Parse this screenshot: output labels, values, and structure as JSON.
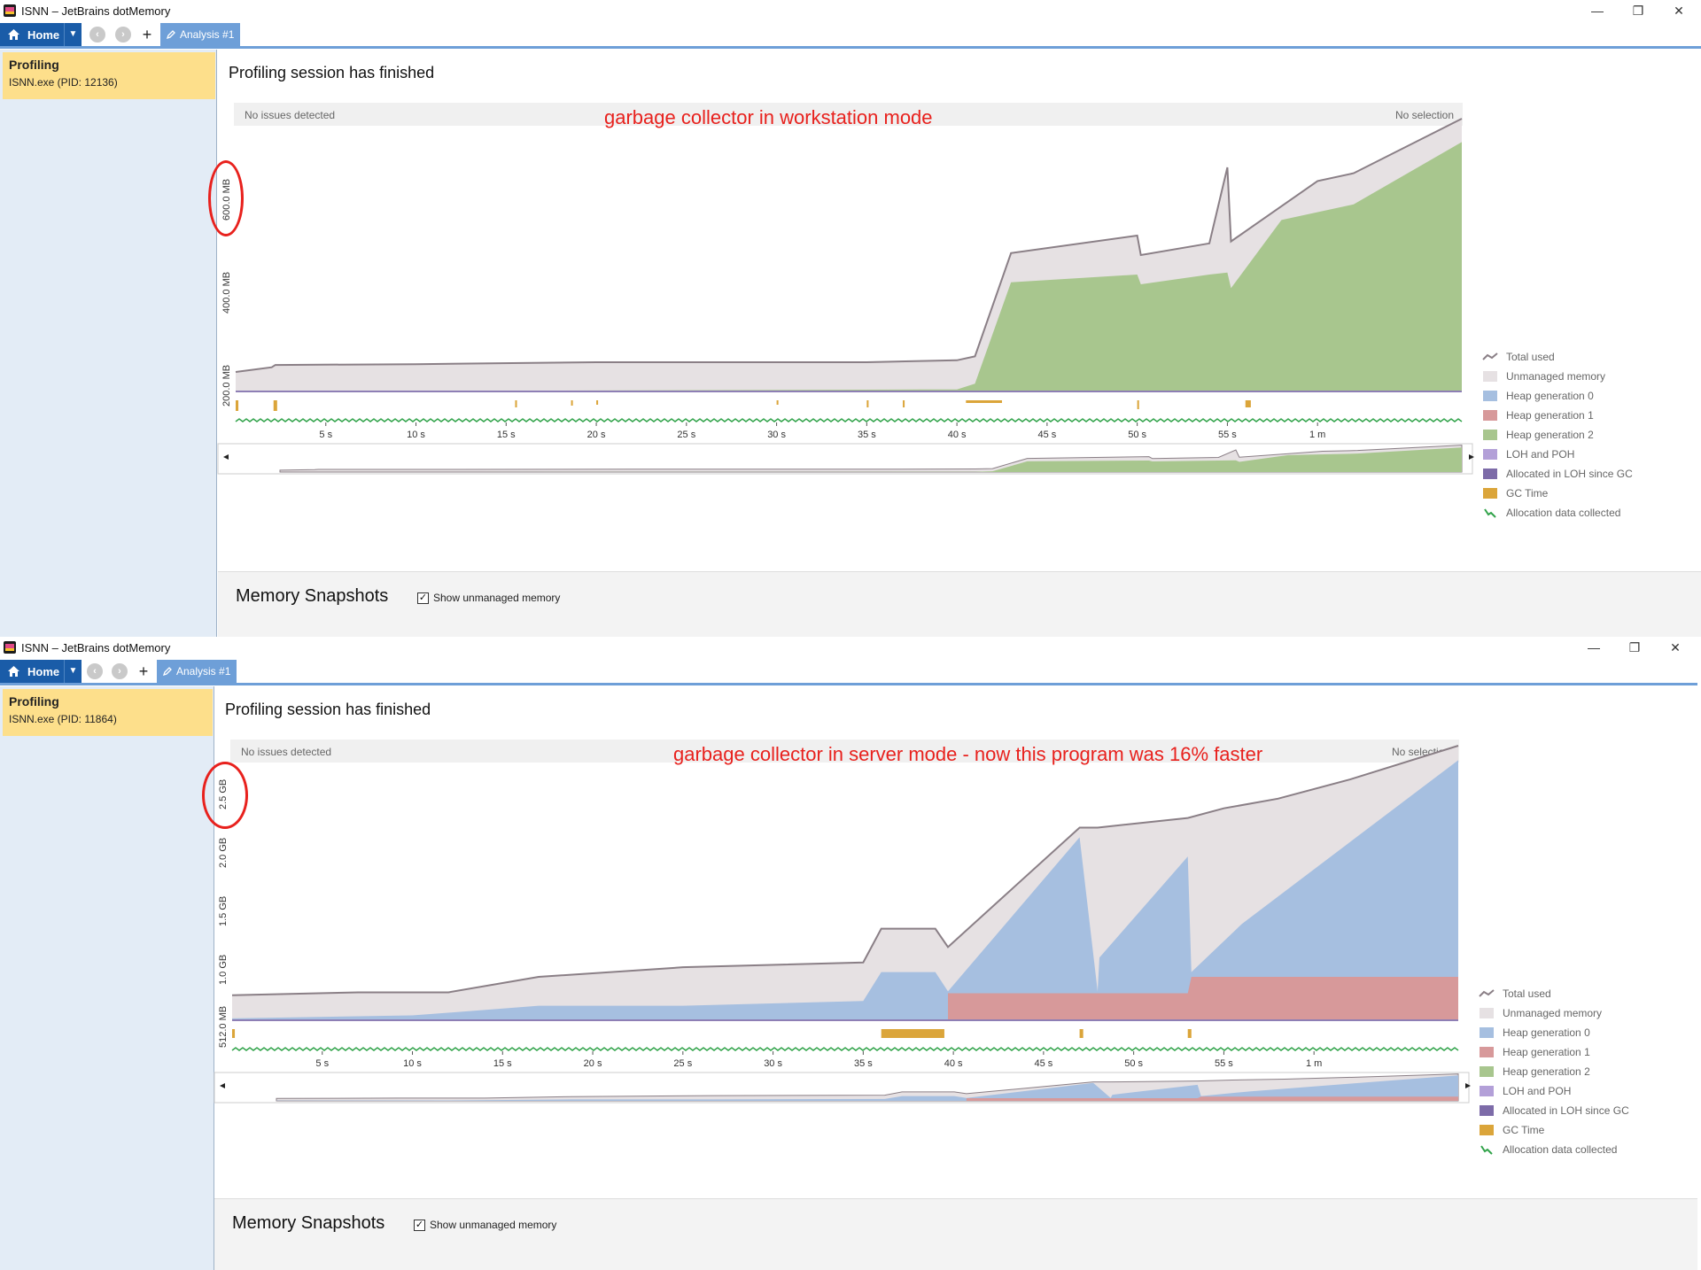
{
  "shots": [
    {
      "window_title": "ISNN – JetBrains dotMemory",
      "toolbar": {
        "home_label": "Home",
        "tab_label": "Analysis #1"
      },
      "sidebar": {
        "title": "Profiling",
        "process": "ISNN.exe (PID: 12136)"
      },
      "status": "Profiling session has finished",
      "infobar": {
        "left": "No issues detected",
        "right": "No selection"
      },
      "annotation": "garbage collector in workstation mode",
      "y_axis_labels": [
        "200.0 MB",
        "400.0 MB",
        "600.0 MB"
      ],
      "legend": [
        "Total used",
        "Unmanaged memory",
        "Heap generation 0",
        "Heap generation 1",
        "Heap generation 2",
        "LOH and POH",
        "Allocated in LOH since GC",
        "GC Time",
        "Allocation data collected"
      ],
      "snapshots": {
        "title": "Memory Snapshots",
        "checkbox_label": "Show unmanaged memory",
        "checked": true
      },
      "chart_data": {
        "type": "area",
        "x_unit": "s",
        "x_tick_labels": [
          "5 s",
          "10 s",
          "15 s",
          "20 s",
          "25 s",
          "30 s",
          "35 s",
          "40 s",
          "45 s",
          "50 s",
          "55 s",
          "1 m"
        ],
        "ylim_mb": [
          0,
          700
        ],
        "series": [
          {
            "name": "Total used",
            "x": [
              0,
              2,
              2.2,
              10,
              20,
              25,
              35,
              40,
              41,
              43,
              50,
              50.2,
              54,
              55,
              55.2,
              60,
              62,
              68
            ],
            "y": [
              50,
              62,
              68,
              70,
              75,
              75,
              75,
              80,
              90,
              355,
              400,
              350,
              380,
              575,
              385,
              540,
              560,
              700
            ]
          },
          {
            "name": "Heap generation 2",
            "x": [
              0,
              38,
              40,
              41,
              43,
              50,
              50.2,
              54,
              55,
              55.2,
              58,
              62,
              68
            ],
            "y": [
              0,
              5,
              5,
              20,
              280,
              300,
              275,
              300,
              305,
              265,
              440,
              480,
              640
            ]
          }
        ]
      }
    },
    {
      "window_title": "ISNN – JetBrains dotMemory",
      "toolbar": {
        "home_label": "Home",
        "tab_label": "Analysis #1"
      },
      "sidebar": {
        "title": "Profiling",
        "process": "ISNN.exe (PID: 11864)"
      },
      "status": "Profiling session has finished",
      "infobar": {
        "left": "No issues detected",
        "right": "No selection"
      },
      "annotation": "garbage collector in server mode  -  now this program was 16% faster",
      "y_axis_labels": [
        "512.0 MB",
        "1.0 GB",
        "1.5 GB",
        "2.0 GB",
        "2.5 GB"
      ],
      "legend": [
        "Total used",
        "Unmanaged memory",
        "Heap generation 0",
        "Heap generation 1",
        "Heap generation 2",
        "LOH and POH",
        "Allocated in LOH since GC",
        "GC Time",
        "Allocation data collected"
      ],
      "snapshots": {
        "title": "Memory Snapshots",
        "checkbox_label": "Show unmanaged memory",
        "checked": true
      },
      "chart_data": {
        "type": "area",
        "x_unit": "s",
        "x_tick_labels": [
          "5 s",
          "10 s",
          "15 s",
          "20 s",
          "25 s",
          "30 s",
          "35 s",
          "40 s",
          "45 s",
          "50 s",
          "55 s",
          "1 m"
        ],
        "ylim_gb": [
          0,
          2.85
        ],
        "series": [
          {
            "name": "Total used",
            "x": [
              0,
              7,
              12,
              17,
              25,
              35,
              36,
              39,
              39.7,
              47,
              48,
              53,
              55,
              58,
              62,
              68
            ],
            "y": [
              0.26,
              0.29,
              0.29,
              0.45,
              0.55,
              0.6,
              0.95,
              0.95,
              0.76,
              2.0,
              2.0,
              2.1,
              2.2,
              2.3,
              2.5,
              2.85
            ]
          },
          {
            "name": "Heap generation 0",
            "x": [
              0,
              10,
              17,
              25,
              35,
              36,
              39,
              39.7,
              47,
              48,
              48.1,
              53,
              53.2,
              56,
              62,
              68
            ],
            "y": [
              0.02,
              0.05,
              0.15,
              0.15,
              0.2,
              0.5,
              0.5,
              0.3,
              1.9,
              0.3,
              0.65,
              1.7,
              0.5,
              1.0,
              1.85,
              2.7
            ]
          },
          {
            "name": "Heap generation 1",
            "x": [
              39.7,
              53,
              53.2,
              68
            ],
            "y": [
              0.28,
              0.28,
              0.45,
              0.45
            ]
          }
        ]
      }
    }
  ]
}
